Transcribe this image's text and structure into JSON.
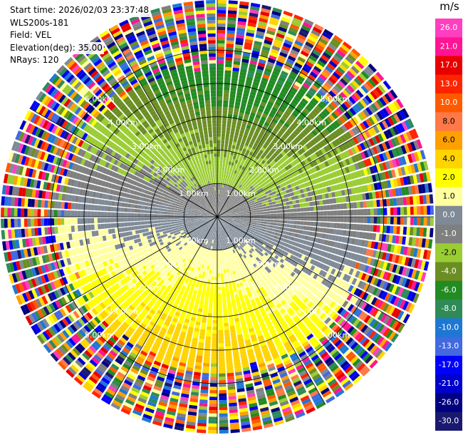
{
  "header": {
    "start_time": "Start time: 2026/02/03 23:37:48",
    "instrument": "WLS200s-181",
    "field": "Field: VEL",
    "elevation": "Elevation(deg): 35.00",
    "nrays": "NRays: 120"
  },
  "chart_data": {
    "type": "ppi",
    "field": "VEL",
    "nrays": 120,
    "elevation_deg": 35.0,
    "range_rings_km": [
      1.0,
      2.0,
      3.0,
      4.0,
      5.0
    ],
    "ring_labels": [
      "1.00km",
      "2.00km",
      "3.00km",
      "4.00km",
      "5.00km"
    ],
    "max_range_km": 6.5,
    "vmin": -30.0,
    "vmax": 30.0,
    "colorbar": {
      "unit": "m/s",
      "ticks": [
        "26.0",
        "21.0",
        "17.0",
        "13.0",
        "10.0",
        "8.0",
        "6.0",
        "4.0",
        "2.0",
        "1.0",
        "0.0",
        "-1.0",
        "-2.0",
        "-4.0",
        "-6.0",
        "-8.0",
        "-10.0",
        "-13.0",
        "-17.0",
        "-21.0",
        "-26.0",
        "-30.0"
      ],
      "colors": [
        "#ff3fbf",
        "#ff1493",
        "#e80000",
        "#ff2400",
        "#ff5a00",
        "#ff7848",
        "#ffa000",
        "#ffd400",
        "#ffff00",
        "#ffffa0",
        "#7f8a96",
        "#7f7f7f",
        "#9acd32",
        "#6b8e23",
        "#228b22",
        "#2e8b57",
        "#1f77d4",
        "#4169e1",
        "#0000ff",
        "#0000cd",
        "#000080",
        "#191970"
      ]
    },
    "wind_direction_deg": 10
  }
}
